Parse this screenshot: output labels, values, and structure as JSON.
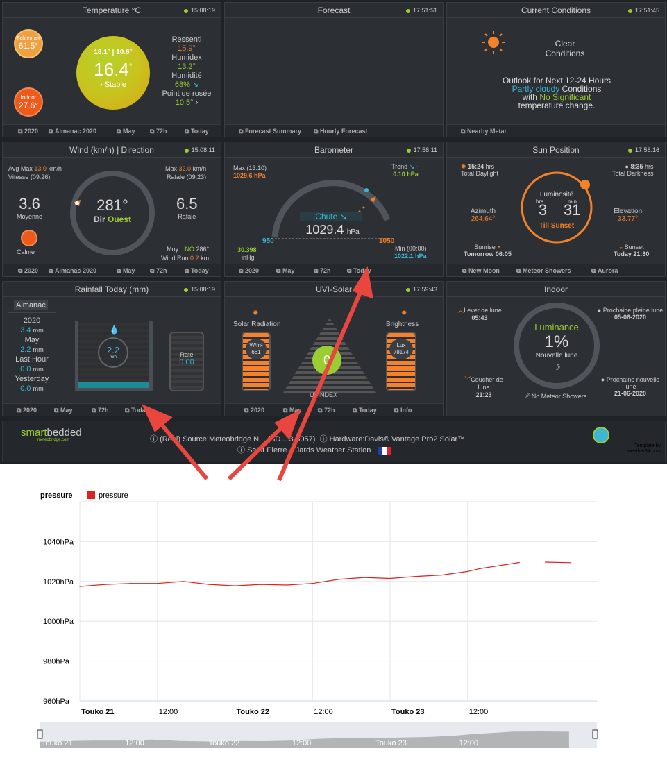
{
  "temperature": {
    "title": "Temperature °C",
    "time": "15:08:19",
    "fahrenheit_label": "Fahrenheit",
    "fahrenheit": "61.5°",
    "indoor_label": "Indoor",
    "indoor": "27.6°",
    "hilo": "18.1° | 10.6°",
    "value": "16.4",
    "deg": "°",
    "trend": "Stable",
    "ressenti_label": "Ressenti",
    "ressenti": "15.9°",
    "humidex_label": "Humidex",
    "humidex": "13.2°",
    "humidite_label": "Humidité",
    "humidite": "68%",
    "rosee_label": "Point de rosée",
    "rosee": "10.5°",
    "footer": [
      "2020",
      "Almanac 2020",
      "May",
      "72h",
      "Today"
    ]
  },
  "forecast": {
    "title": "Forecast",
    "time": "17:51:51",
    "footer": [
      "Forecast Summary",
      "Hourly Forecast"
    ]
  },
  "conditions": {
    "title": "Current Conditions",
    "time": "17:51:45",
    "line1": "Clear",
    "line2": "Conditions",
    "outlook": "Outlook for Next 12-24 Hours",
    "partly": "Partly cloudy",
    "conditions_word": "Conditions",
    "with": "with",
    "nosig": "No Significant",
    "change": "temperature change.",
    "footer": [
      "Nearby Metar"
    ]
  },
  "wind": {
    "title": "Wind (km/h) | Direction",
    "time": "15:08:11",
    "avgmax_label": "Avg Max",
    "avgmax": "13.0",
    "unit": "km/h",
    "vitesse": "Vitesse (09:26)",
    "max_label": "Max",
    "max": "32.0",
    "rafale": "Rafale (09:23)",
    "moyenne": "3.6",
    "moyenne_label": "Moyenne",
    "dir": "281°",
    "dir_label": "Dir",
    "dir_word": "Ouest",
    "rafale_val": "6.5",
    "rafale_label": "Rafale",
    "calme": "Calme",
    "moy_line_a": "Moy. :",
    "moy_dir": "NO",
    "moy_deg": "286°",
    "run_label": "Wind Run:",
    "run": "0.2",
    "run_unit": "km",
    "footer": [
      "2020",
      "Almanac 2020",
      "May",
      "72h",
      "Today"
    ]
  },
  "barometer": {
    "title": "Barometer",
    "time": "17:58:11",
    "max_label": "Max (13:10)",
    "max": "1029.6 hPa",
    "trend_label": "Trend",
    "trend": "0.10 hPa",
    "dash": "-",
    "state": "Chute",
    "value": "1029.4",
    "unit": "hPa",
    "lo": "950",
    "hi": "1050",
    "inhg": "30.398",
    "inhg_label": "inHg",
    "min_label": "Min (00:00)",
    "min": "1022.1 hPa",
    "footer": [
      "2020",
      "May",
      "72h",
      "Today"
    ]
  },
  "sun": {
    "title": "Sun Position",
    "time": "17:58:16",
    "daylight": "15:24",
    "hrs": "hrs",
    "daylight_label": "Total Daylight",
    "darkness": "8:35",
    "darkness_label": "Total Darkness",
    "lum_label": "Luminosité",
    "h_label": "hrs",
    "m_label": "min",
    "h": "3",
    "m": "31",
    "till": "Till Sunset",
    "azimuth_label": "Azimuth",
    "azimuth": "264.64°",
    "elevation_label": "Elevation",
    "elevation": "33.77°",
    "sunrise_label": "Sunrise",
    "sunrise": "Tomorrow 06:05",
    "sunset_label": "Sunset",
    "sunset": "Today 21:30",
    "footer": [
      "New Moon",
      "Meteor Showers",
      "Aurora"
    ]
  },
  "rain": {
    "title": "Rainfall Today (mm)",
    "time": "15:08:19",
    "almanac": "Almanac",
    "y2020": "2020",
    "v2020": "3.4",
    "mm": "mm",
    "may": "May",
    "vmay": "2.2",
    "lasthour": "Last Hour",
    "vlasthour": "0.0",
    "yesterday": "Yesterday",
    "vyesterday": "0.0",
    "today": "2.2",
    "rate_label": "Rate",
    "rate": "0.00",
    "footer": [
      "2020",
      "May",
      "72h",
      "Today"
    ]
  },
  "uvi": {
    "title": "UVI-Solar",
    "time": "17:59:43",
    "solar_label": "Solar Radiation",
    "solar_unit": "W/m²",
    "solar": "661",
    "bright_label": "Brightness",
    "lux_label": "Lux",
    "lux": "78174",
    "uvi": "0",
    "uvindex": "UVINDEX",
    "footer": [
      "2020",
      "May",
      "72h",
      "Today",
      "Info"
    ]
  },
  "indoor": {
    "title": "Indoor",
    "lever_label": "Lever de lune",
    "lever": "05:43",
    "coucher_label": "Coucher de lune",
    "coucher": "21:23",
    "pleine_label": "Prochaine pleine lune",
    "pleine": "05-06-2020",
    "nouvelle_label": "Prochaine nouvelle lune",
    "nouvelle": "21-06-2020",
    "lum_label": "Luminance",
    "lum": "1%",
    "phase": "Nouvelle lune",
    "meteor": "No Meteor Showers"
  },
  "bottom": {
    "logo_a": "smart",
    "logo_b": "bedded",
    "logo_sub": "meteobridge.com",
    "line1": "(Real) Source:Meteobridge N... (SD... 3-3057)",
    "hardware": "Hardware:Davis® Vantage Pro2 Solar™",
    "line2": "Saint Pierre... Jards Weather Station",
    "template": "Template by",
    "template2": "weather34.com"
  },
  "colors": {
    "orange": "#f5812a",
    "green": "#9acd32",
    "blue": "#3db6d5",
    "arrow": "#e8463f",
    "line": "#e02020"
  },
  "chart_data": {
    "type": "line",
    "title": "pressure",
    "legend": "pressure",
    "series": [
      {
        "name": "pressure",
        "x": [
          0,
          4,
          8,
          12,
          16,
          20,
          24,
          28,
          32,
          36,
          40,
          44,
          48,
          52,
          56,
          60,
          62,
          64,
          66,
          68,
          70,
          72,
          76
        ],
        "y": [
          1017.5,
          1018.5,
          1019,
          1019,
          1020,
          1018.5,
          1017.8,
          1018.5,
          1018.2,
          1019,
          1021,
          1022,
          1021.5,
          1022.5,
          1023.2,
          1025,
          1026.5,
          1027.5,
          1028.5,
          1029.5,
          null,
          1029.7,
          1029.4
        ]
      }
    ],
    "ylim": [
      960,
      1060
    ],
    "yticks": [
      "1040hPa",
      "1020hPa",
      "1000hPa",
      "980hPa",
      "960hPa"
    ],
    "ytick_values": [
      1040,
      1020,
      1000,
      980,
      960
    ],
    "xlim": [
      0,
      80
    ],
    "xticks": [
      "Touko  21",
      "12:00",
      "Touko  22",
      "12:00",
      "Touko  23",
      "12:00"
    ],
    "xtick_values": [
      0,
      12,
      24,
      36,
      48,
      60
    ],
    "navigator": [
      "Touko  21",
      "12:00",
      "Touko  22",
      "12:00",
      "Touko  23",
      "12:00"
    ],
    "grid": true,
    "legend_position": "top-left"
  }
}
